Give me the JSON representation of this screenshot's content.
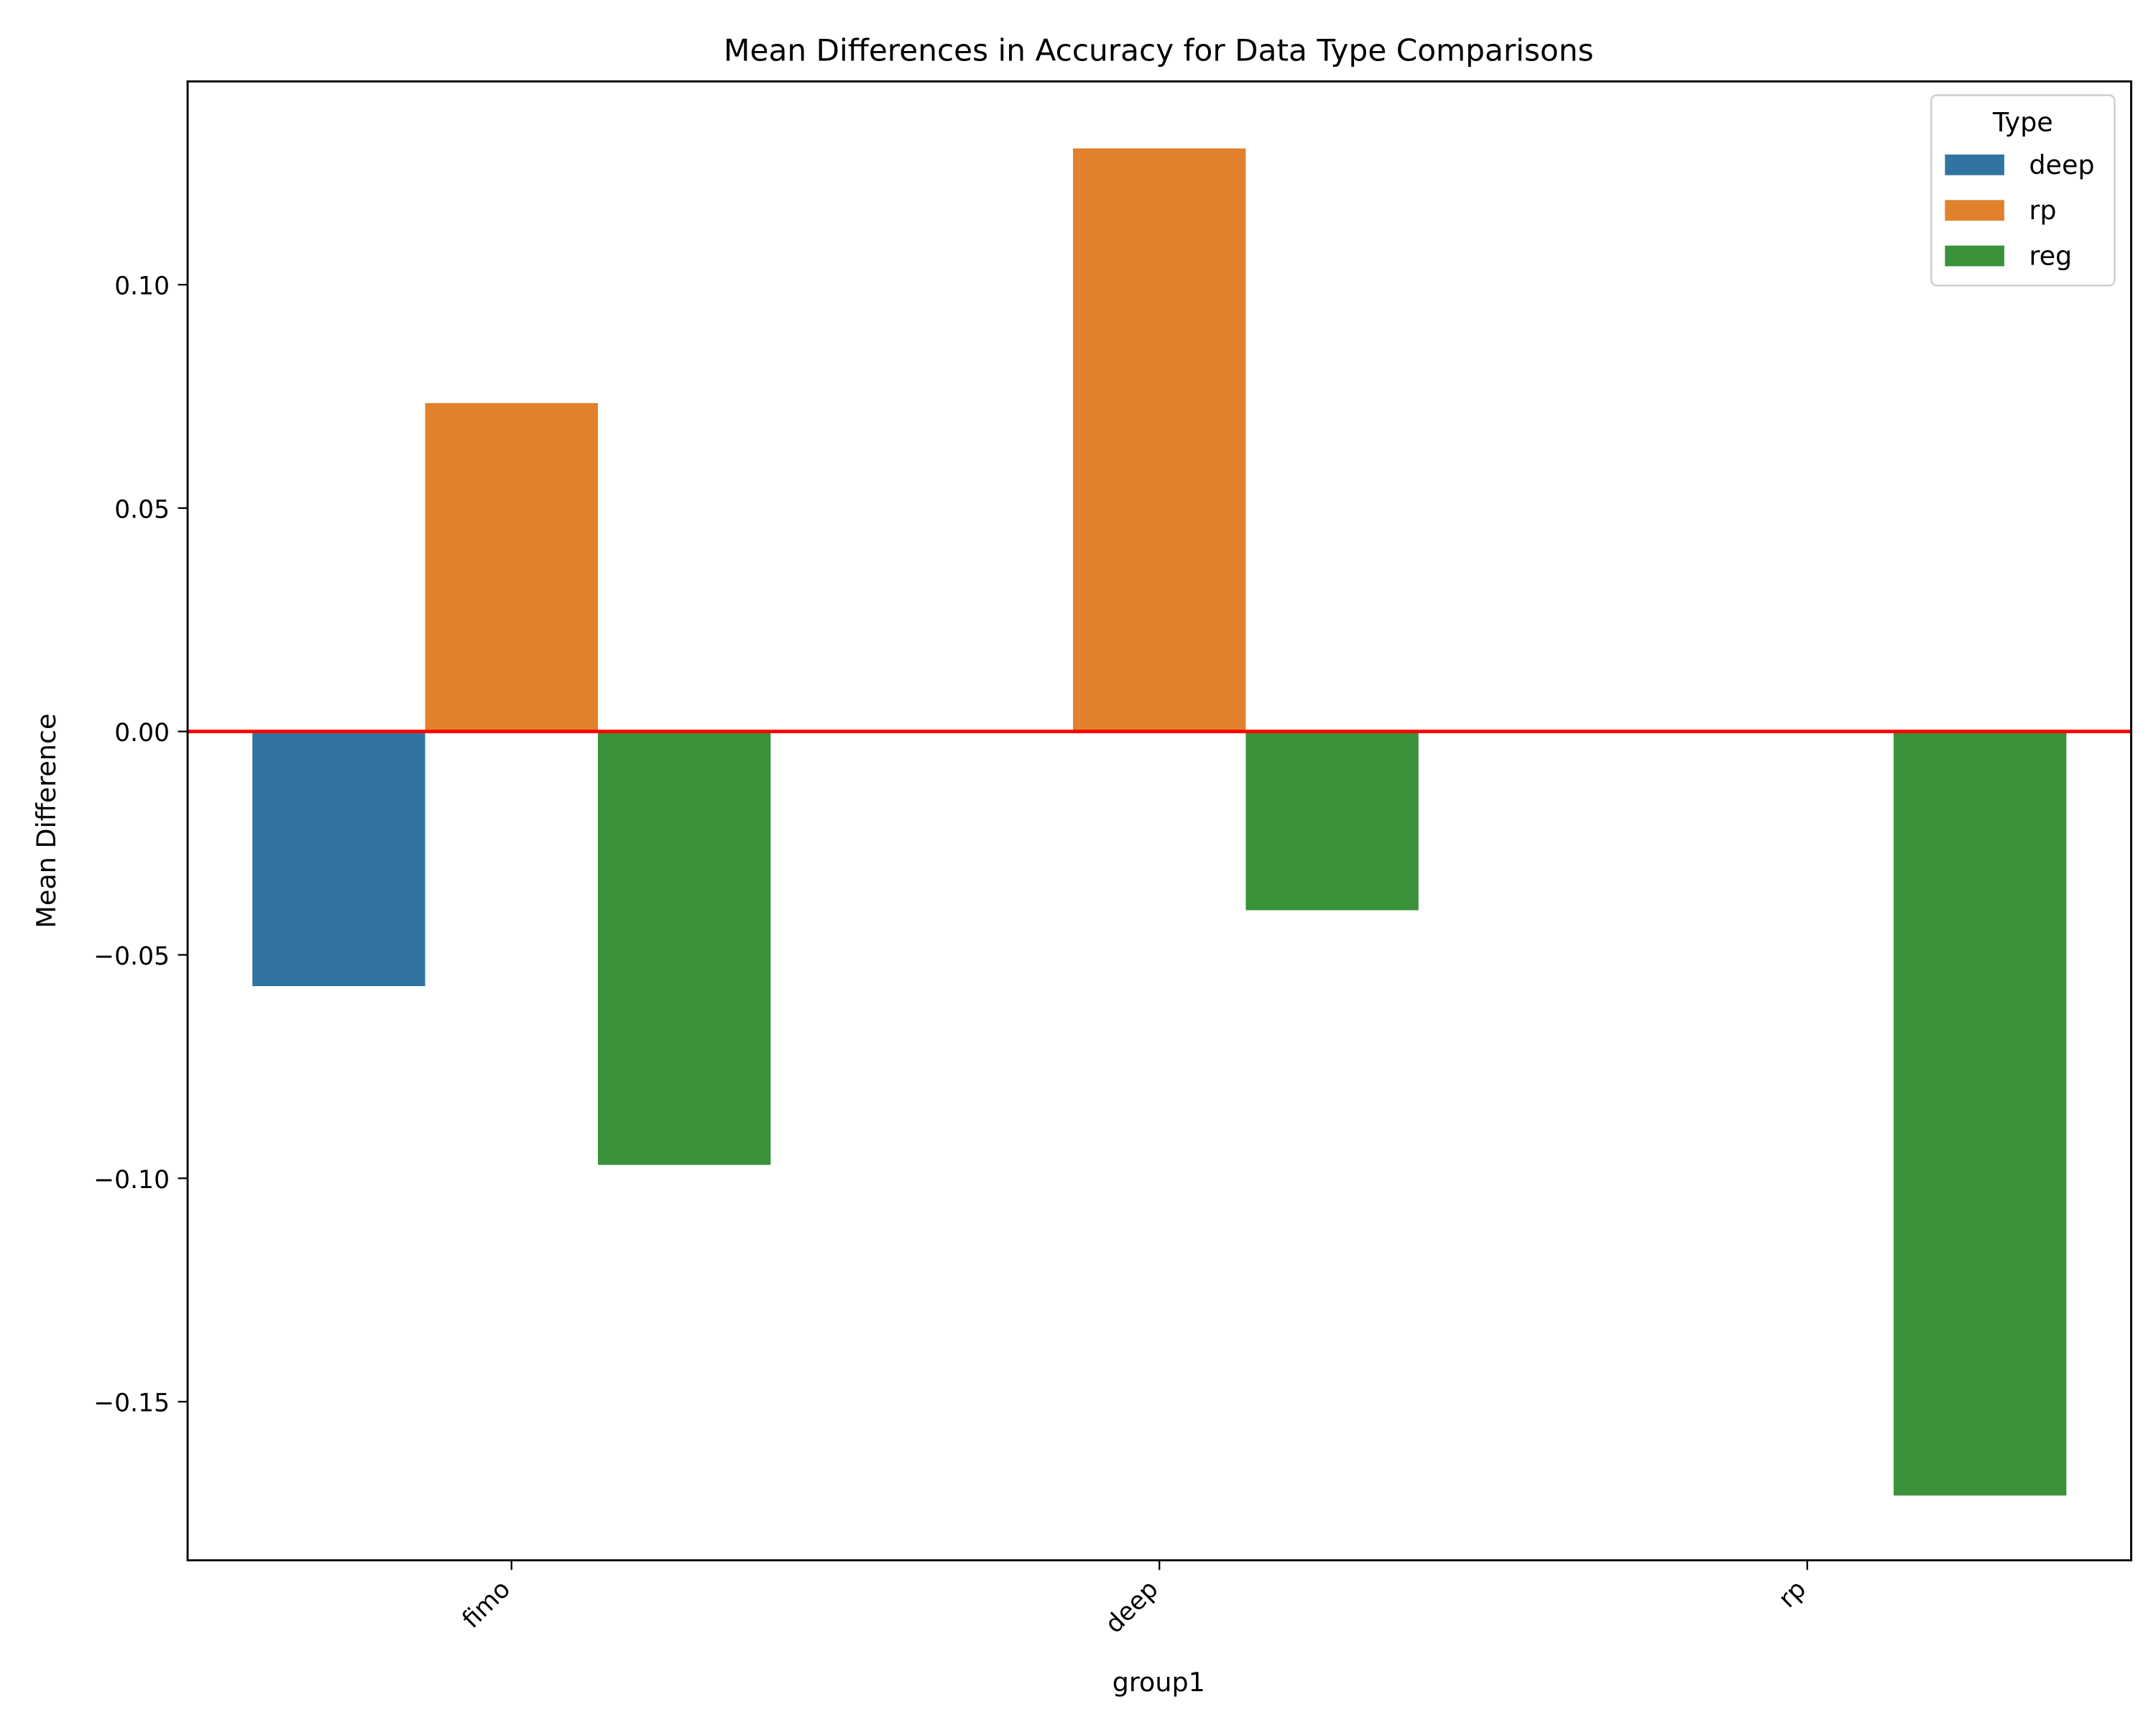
{
  "chart_data": {
    "type": "bar",
    "title": "Mean Differences in Accuracy for Data Type Comparisons",
    "xlabel": "group1",
    "ylabel": "Mean Difference",
    "categories": [
      "fimo",
      "deep",
      "rp"
    ],
    "series": [
      {
        "name": "deep",
        "color": "#3274a1",
        "values": [
          -0.057,
          null,
          null
        ]
      },
      {
        "name": "rp",
        "color": "#e1812c",
        "values": [
          0.0735,
          0.1305,
          null
        ]
      },
      {
        "name": "reg",
        "color": "#3a923a",
        "values": [
          -0.097,
          -0.04,
          -0.171
        ]
      }
    ],
    "ylim": [
      -0.1855,
      0.1455
    ],
    "yticks": [
      -0.15,
      -0.1,
      -0.05,
      0.0,
      0.05,
      0.1
    ],
    "ytick_labels": [
      "−0.15",
      "−0.10",
      "−0.05",
      "0.00",
      "0.05",
      "0.10"
    ],
    "reference_line": {
      "value": 0,
      "color": "#ff0000"
    },
    "legend": {
      "title": "Type",
      "placement": "top-right"
    },
    "grid": false,
    "xtick_rotation": 45
  }
}
